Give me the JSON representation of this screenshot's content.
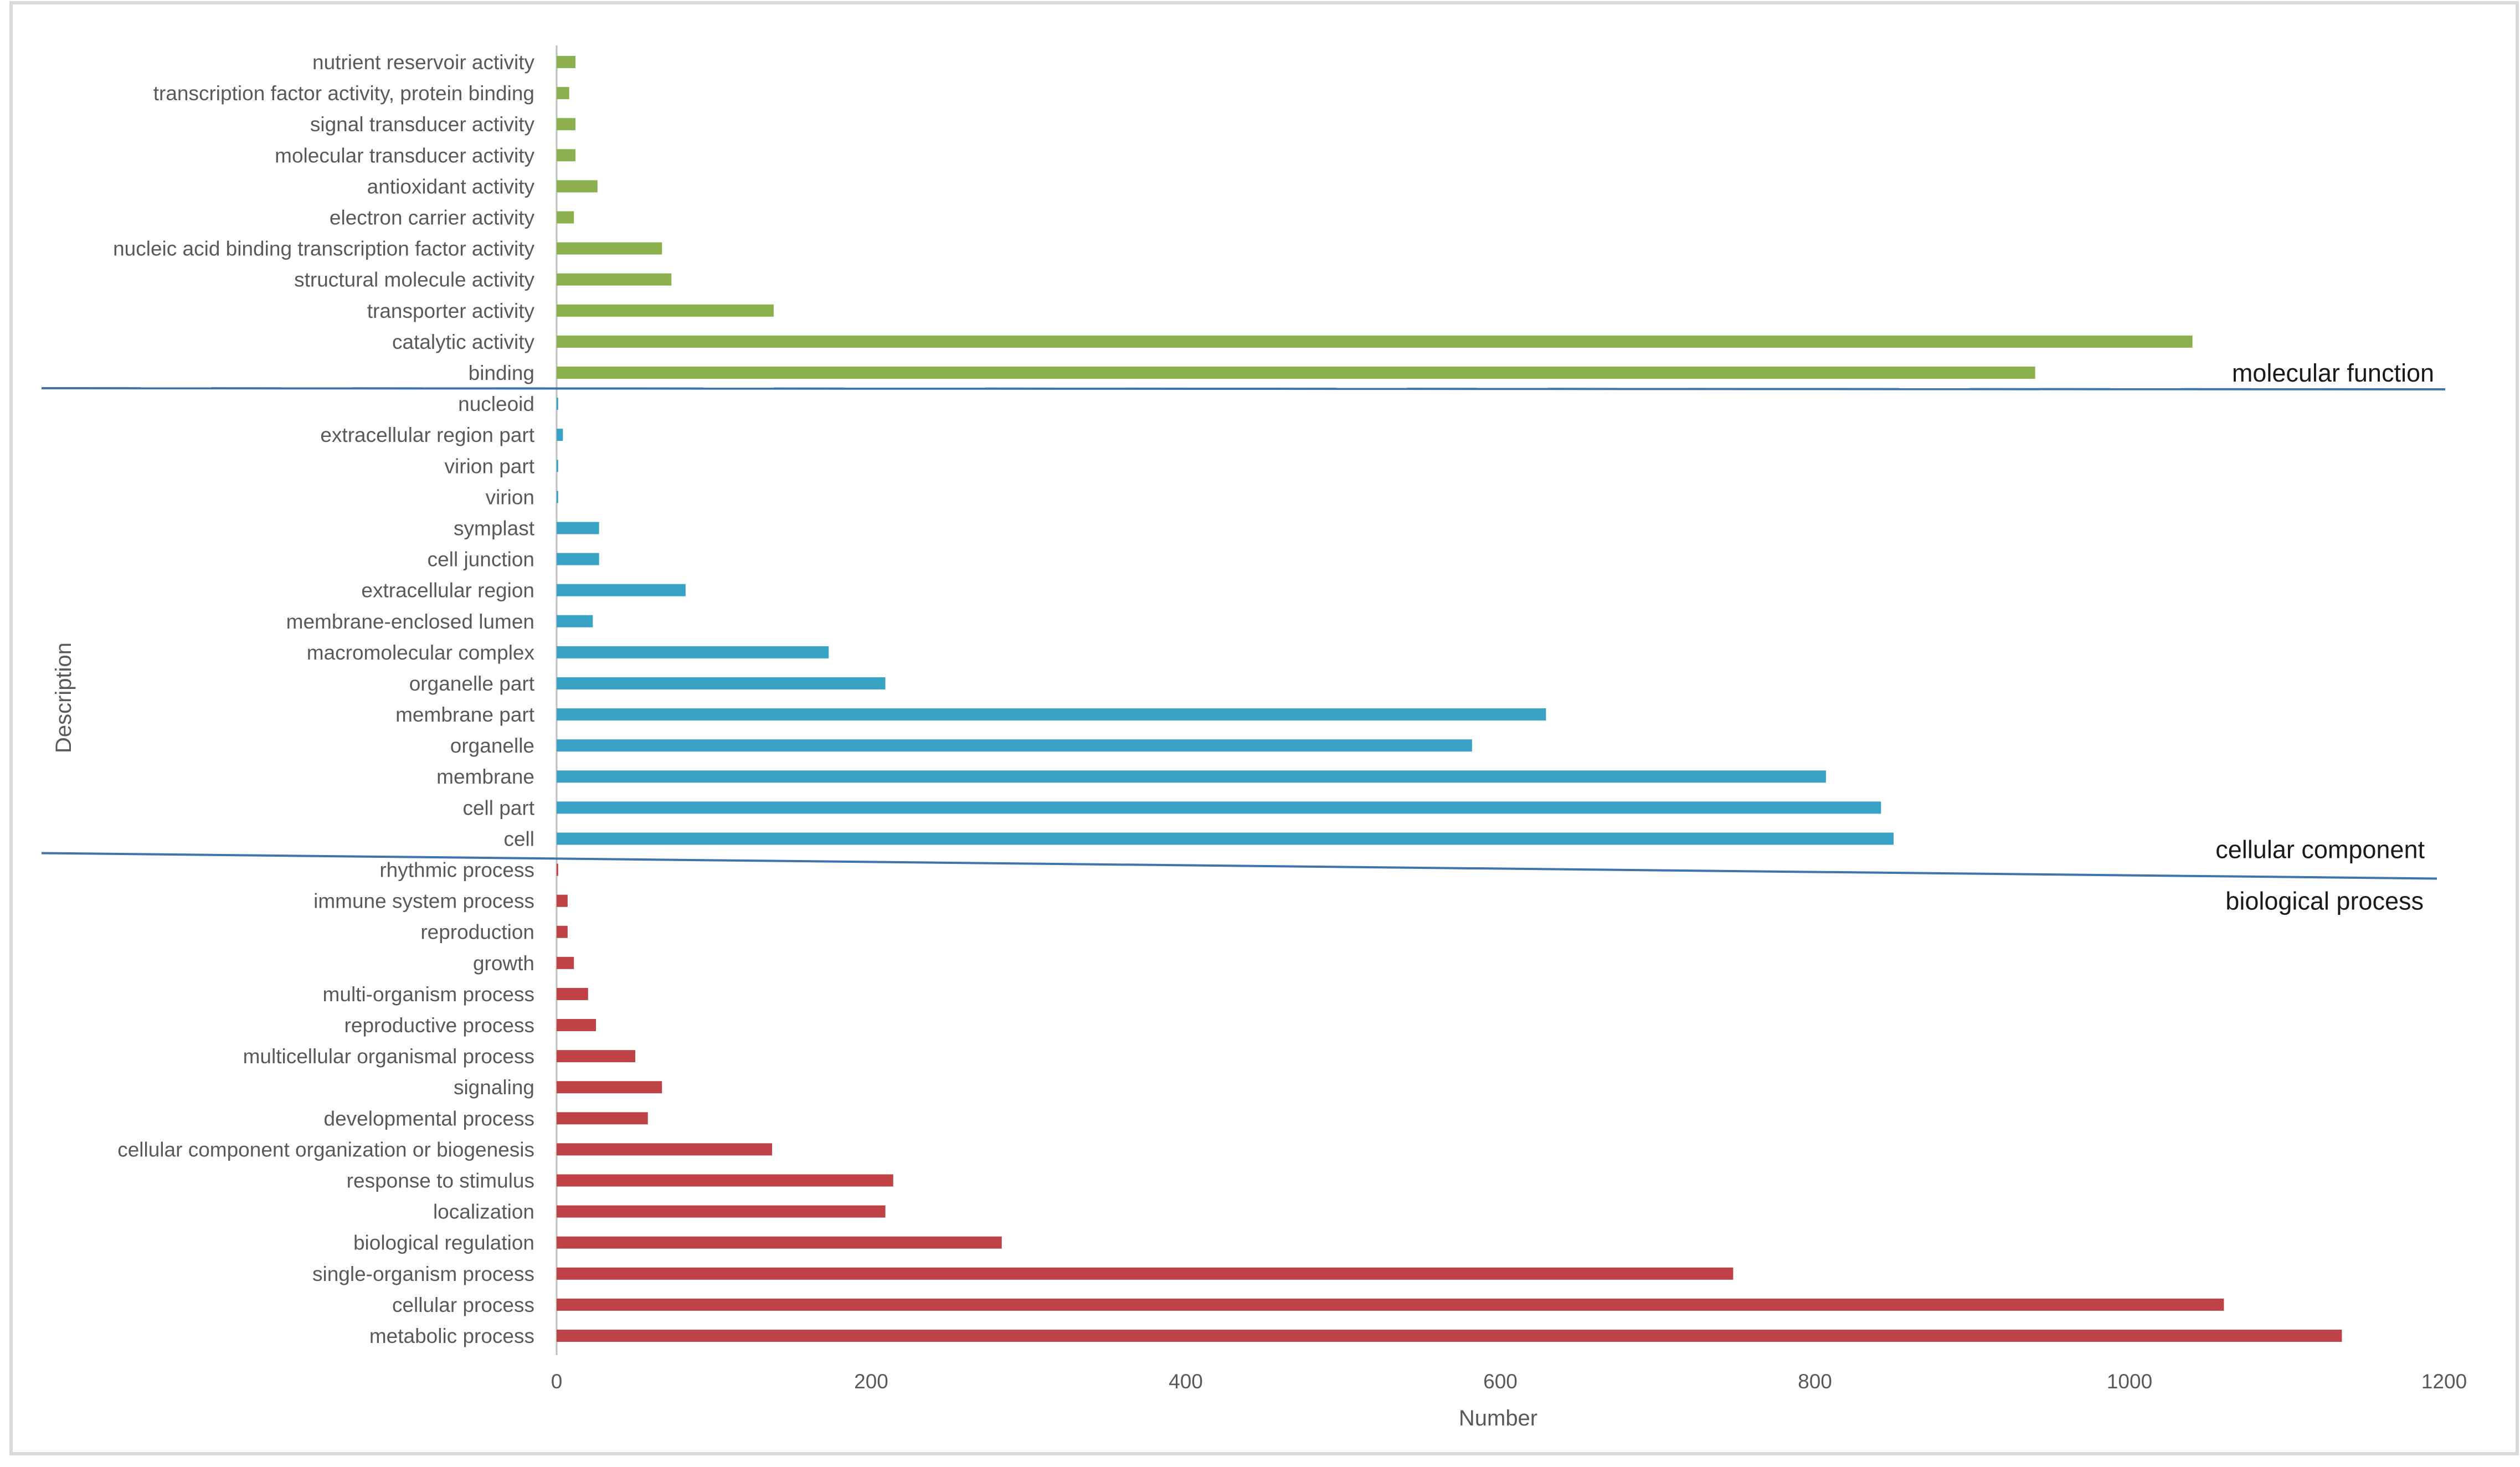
{
  "chart_data": {
    "type": "bar",
    "orientation": "horizontal",
    "xlabel": "Number",
    "ylabel": "Description",
    "xlim": [
      0,
      1200
    ],
    "xticks": [
      "0",
      "200",
      "400",
      "600",
      "800",
      "1000",
      "1200"
    ],
    "grid": false,
    "groups": [
      {
        "label": "molecular function",
        "color": "#8db04f",
        "categories": [
          "nutrient reservoir activity",
          "transcription factor activity, protein binding",
          "signal transducer activity",
          "molecular transducer activity",
          "antioxidant activity",
          "electron carrier activity",
          "nucleic acid binding transcription factor activity",
          "structural molecule activity",
          "transporter activity",
          "catalytic activity",
          "binding"
        ],
        "values": [
          12,
          8,
          12,
          12,
          26,
          11,
          67,
          73,
          138,
          1040,
          940
        ]
      },
      {
        "label": "cellular component",
        "color": "#38a3c4",
        "categories": [
          "nucleoid",
          "extracellular region part",
          "virion part",
          "virion",
          "symplast",
          "cell junction",
          "extracellular region",
          "membrane-enclosed lumen",
          "macromolecular complex",
          "organelle part",
          "membrane part",
          "organelle",
          "membrane",
          "cell part",
          "cell"
        ],
        "values": [
          1,
          4,
          1,
          1,
          27,
          27,
          82,
          23,
          173,
          209,
          629,
          582,
          807,
          842,
          850
        ]
      },
      {
        "label": "biological process",
        "color": "#bf4346",
        "categories": [
          "rhythmic process",
          "immune system process",
          "reproduction",
          "growth",
          "multi-organism process",
          "reproductive process",
          "multicellular organismal process",
          "signaling",
          "developmental process",
          "cellular component organization or biogenesis",
          "response to stimulus",
          "localization",
          "biological regulation",
          "single-organism process",
          "cellular process",
          "metabolic process"
        ],
        "values": [
          1,
          7,
          7,
          11,
          20,
          25,
          50,
          67,
          58,
          137,
          214,
          209,
          283,
          748,
          1060,
          1135
        ]
      }
    ]
  }
}
